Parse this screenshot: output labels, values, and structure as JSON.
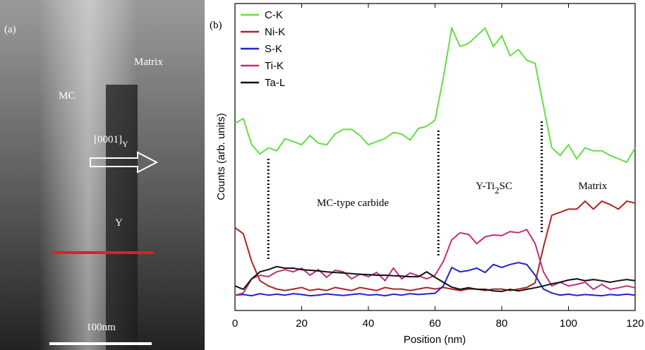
{
  "panel_a": {
    "label": "(a)",
    "region_labels": [
      "MC",
      "Matrix",
      "Y"
    ],
    "direction": [
      "[0001]",
      "Y"
    ],
    "scale_bar": "100nm"
  },
  "chart_data": {
    "type": "line",
    "label": "(b)",
    "x_label": "Position (nm)",
    "y_label": "Counts (arb. units)",
    "xlim": [
      0,
      120
    ],
    "xticks": [
      0,
      20,
      40,
      60,
      80,
      100,
      120
    ],
    "ylim": [
      0,
      100
    ],
    "legend": "top-left",
    "x": [
      0,
      2.5,
      5,
      7.5,
      10,
      12.5,
      15,
      17.5,
      20,
      22.5,
      25,
      27.5,
      30,
      32.5,
      35,
      37.5,
      40,
      42.5,
      45,
      47.5,
      50,
      52.5,
      55,
      57.5,
      60,
      62.5,
      65,
      67.5,
      70,
      72.5,
      75,
      77.5,
      80,
      82.5,
      85,
      87.5,
      90,
      92.5,
      95,
      97.5,
      100,
      102.5,
      105,
      107.5,
      110,
      112.5,
      115,
      117.5,
      120
    ],
    "series": [
      {
        "name": "C-K",
        "color": "#66dd44",
        "values": [
          61,
          62.5,
          54,
          51,
          53,
          52,
          56,
          55,
          54,
          57,
          54.5,
          54,
          57.5,
          59,
          59,
          57,
          54,
          55,
          56,
          58,
          57.5,
          55.5,
          59.3,
          60,
          62,
          76,
          92,
          86,
          87,
          89.5,
          92,
          86,
          89.5,
          83,
          85,
          81.5,
          80.5,
          66.7,
          53,
          50.5,
          54,
          49.4,
          53,
          52,
          52,
          50.5,
          49.4,
          48.3,
          53
        ]
      },
      {
        "name": "Ni-K",
        "color": "#b22222",
        "values": [
          27,
          25,
          16,
          9.7,
          8,
          7,
          6.5,
          7,
          7.5,
          6.5,
          7,
          6.5,
          7.5,
          7,
          6.5,
          7.5,
          7,
          6.5,
          7.5,
          7,
          7,
          6.5,
          7,
          7.5,
          7,
          7.5,
          7,
          6.5,
          7,
          7,
          6.5,
          7,
          7,
          6.5,
          7,
          7.5,
          9,
          20.7,
          31,
          32,
          33,
          33,
          35.6,
          33,
          35.6,
          34.5,
          33,
          35.6,
          35
        ]
      },
      {
        "name": "S-K",
        "color": "#2222cc",
        "values": [
          5,
          5.2,
          4.8,
          5.5,
          5,
          5.3,
          5,
          5.5,
          5.2,
          4.8,
          5,
          5.4,
          5.1,
          4.9,
          5.2,
          5.5,
          5,
          5.2,
          4.8,
          5.3,
          5,
          5.5,
          5.2,
          5.4,
          5.6,
          8,
          14,
          12.6,
          13,
          13.8,
          12.4,
          15,
          14,
          15,
          15.6,
          15,
          11.5,
          7,
          5.7,
          5,
          5.3,
          4.9,
          5.2,
          5,
          4.8,
          5.2,
          5,
          5.3,
          5
        ]
      },
      {
        "name": "Ti-K",
        "color": "#c0307a",
        "values": [
          5,
          5.7,
          10.3,
          11.5,
          11,
          12.6,
          13.3,
          12.6,
          13.8,
          11.5,
          13.3,
          10.8,
          13.1,
          12.6,
          10.3,
          11.9,
          11,
          12.4,
          9.7,
          13.8,
          10.3,
          12.2,
          11.3,
          10.3,
          11.5,
          16,
          23,
          25.3,
          24.8,
          21.8,
          24,
          24.6,
          24.4,
          25.7,
          25.3,
          26.4,
          21.8,
          12.6,
          8,
          9.2,
          8,
          8.5,
          9.2,
          6.9,
          8.5,
          6.9,
          7.4,
          8,
          7.4
        ]
      },
      {
        "name": "Ta-L",
        "color": "#111111",
        "values": [
          8,
          6.9,
          10.3,
          12.6,
          13.3,
          14.3,
          13.8,
          13.8,
          13.3,
          13.1,
          12.9,
          12.6,
          12.4,
          12.2,
          12,
          11.8,
          11.7,
          11.5,
          11.5,
          11.3,
          11.2,
          11,
          11,
          12.6,
          10.8,
          9.2,
          7.6,
          6.9,
          7.4,
          6.9,
          6.9,
          6.4,
          6.2,
          6.9,
          6.4,
          6.9,
          7.4,
          8,
          8.7,
          9.2,
          9.9,
          10.3,
          9.7,
          10.1,
          9.7,
          9.2,
          9.7,
          10.1,
          9.7
        ]
      }
    ],
    "dividers": [
      10,
      61,
      92
    ],
    "region_labels": [
      [
        "MC-type carbide"
      ],
      [
        "Y-Ti",
        "2",
        "SC"
      ],
      [
        "Matrix"
      ]
    ]
  }
}
